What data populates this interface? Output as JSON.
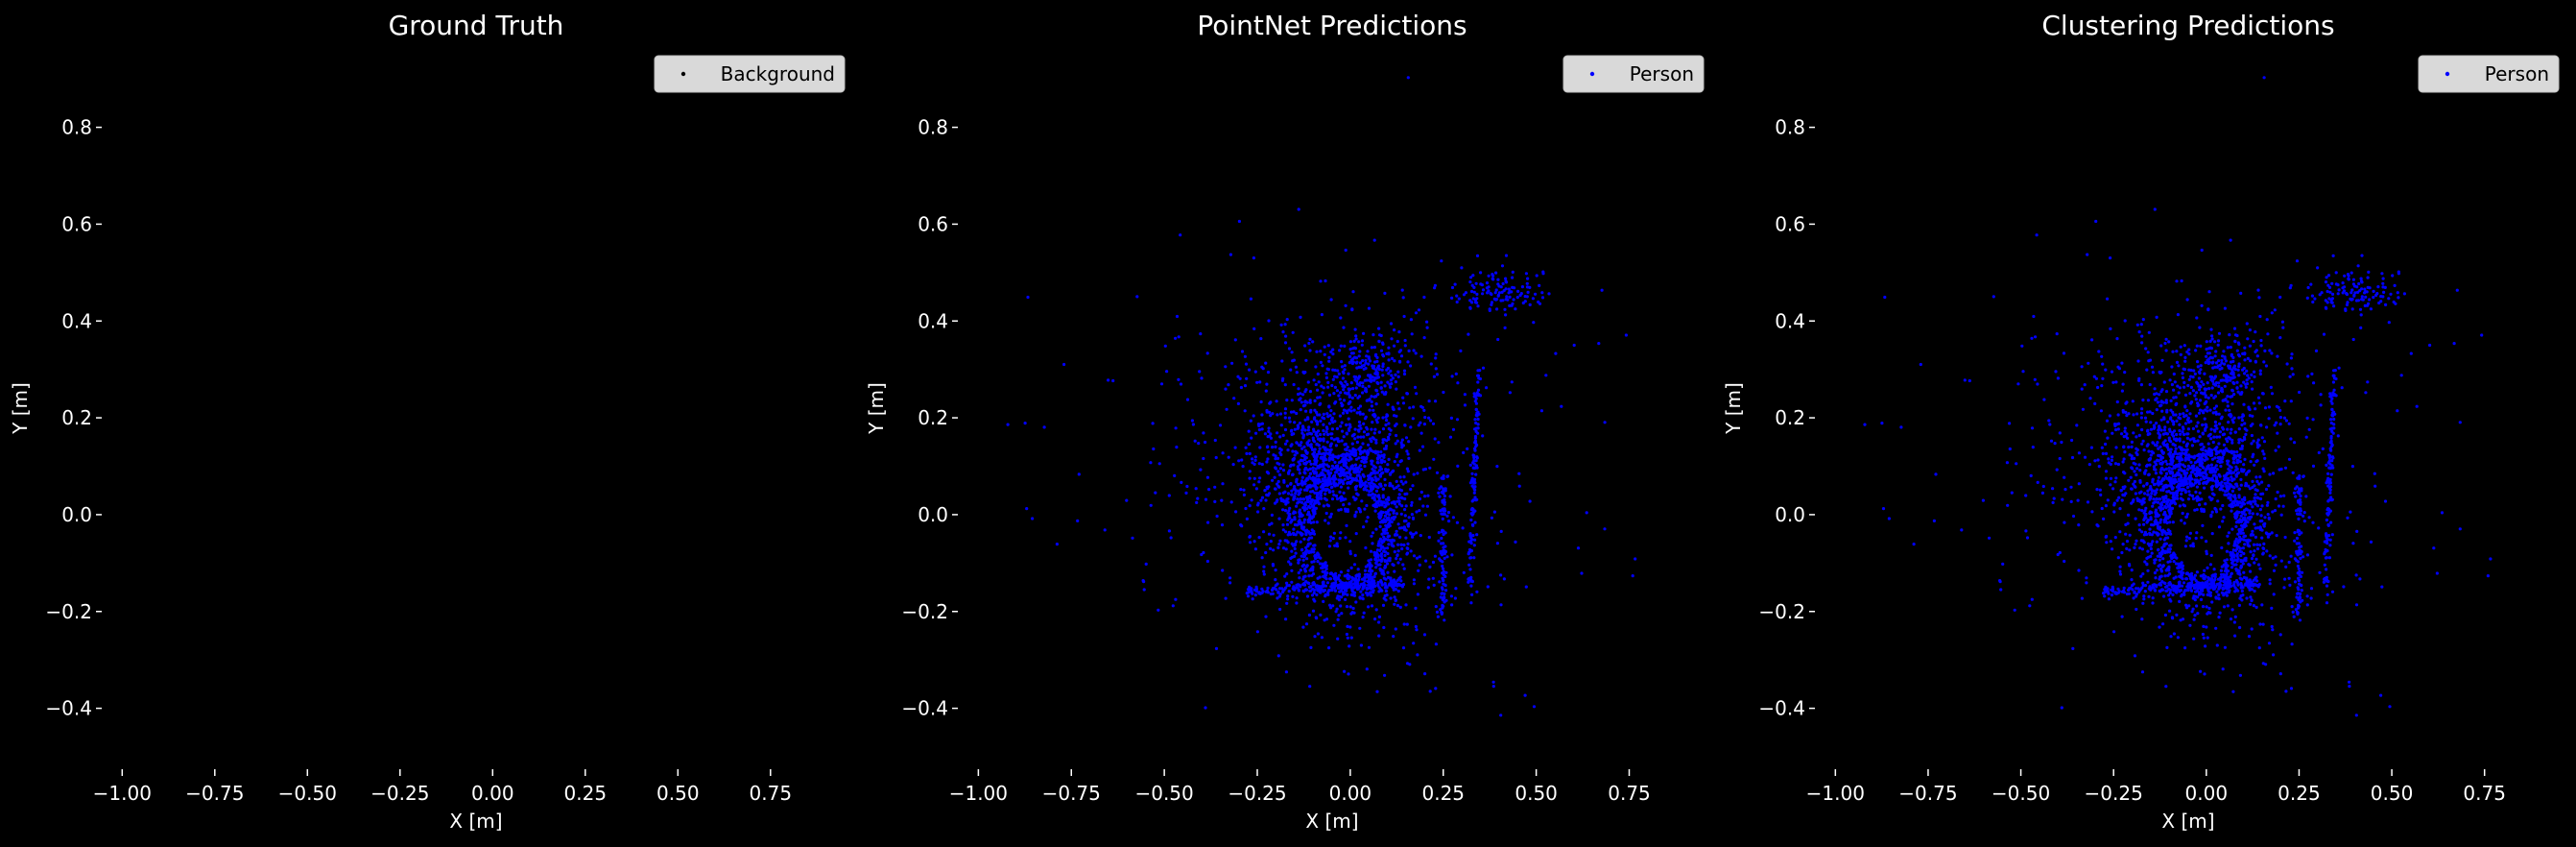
{
  "colors": {
    "background": "#000000",
    "text": "#ffffff",
    "person": "#0000ff",
    "background_class": "#000000",
    "legend_bg": "#d9d9d9"
  },
  "chart_data": [
    {
      "type": "scatter",
      "title": "Ground Truth",
      "xlabel": "X [m]",
      "ylabel": "Y [m]",
      "xlim": [
        -1.05,
        0.95
      ],
      "ylim": [
        -0.5,
        0.94
      ],
      "xticks": [
        "-1.00",
        "-0.75",
        "-0.50",
        "-0.25",
        "0.00",
        "0.25",
        "0.50",
        "0.75"
      ],
      "yticks": [
        "-0.4",
        "-0.2",
        "0.0",
        "0.2",
        "0.4",
        "0.6",
        "0.8"
      ],
      "legend": {
        "position": "top-right",
        "entries": [
          {
            "label": "Background",
            "color": "#000000"
          }
        ]
      },
      "series": [
        {
          "name": "Background",
          "color": "#000000",
          "points": "point-cloud (not individually readable)"
        }
      ],
      "grid": false
    },
    {
      "type": "scatter",
      "title": "PointNet Predictions",
      "xlabel": "X [m]",
      "ylabel": "Y [m]",
      "xlim": [
        -1.05,
        0.95
      ],
      "ylim": [
        -0.5,
        0.94
      ],
      "xticks": [
        "-1.00",
        "-0.75",
        "-0.50",
        "-0.25",
        "0.00",
        "0.25",
        "0.50",
        "0.75"
      ],
      "yticks": [
        "-0.4",
        "-0.2",
        "0.0",
        "0.2",
        "0.4",
        "0.6",
        "0.8"
      ],
      "legend": {
        "position": "top-right",
        "entries": [
          {
            "label": "Person",
            "color": "#0000ff"
          }
        ]
      },
      "series": [
        {
          "name": "Person",
          "color": "#0000ff",
          "points": "dense point cloud centered near (0.0, 0.0)"
        }
      ],
      "grid": false
    },
    {
      "type": "scatter",
      "title": "Clustering Predictions",
      "xlabel": "X [m]",
      "ylabel": "Y [m]",
      "xlim": [
        -1.05,
        0.95
      ],
      "ylim": [
        -0.5,
        0.94
      ],
      "xticks": [
        "-1.00",
        "-0.75",
        "-0.50",
        "-0.25",
        "0.00",
        "0.25",
        "0.50",
        "0.75"
      ],
      "yticks": [
        "-0.4",
        "-0.2",
        "0.0",
        "0.2",
        "0.4",
        "0.6",
        "0.8"
      ],
      "legend": {
        "position": "top-right",
        "entries": [
          {
            "label": "Person",
            "color": "#0000ff"
          }
        ]
      },
      "series": [
        {
          "name": "Person",
          "color": "#0000ff",
          "points": "dense point cloud centered near (0.0, 0.0)"
        }
      ],
      "grid": false
    }
  ]
}
